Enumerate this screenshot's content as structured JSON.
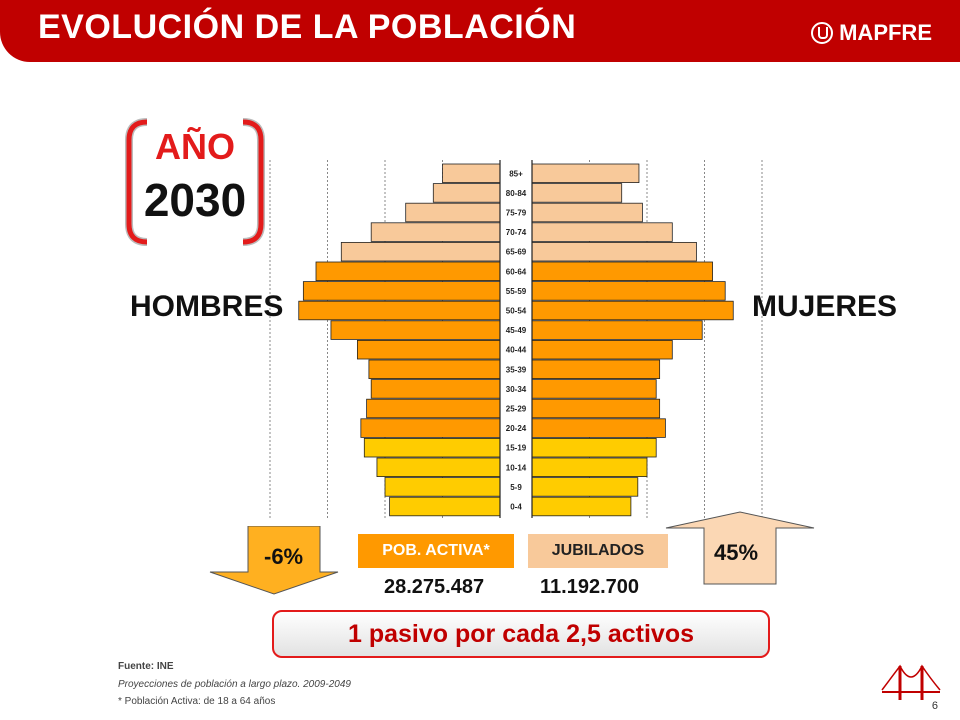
{
  "header": {
    "title": "EVOLUCIÓN DE LA POBLACIÓN",
    "logo": "MAPFRE"
  },
  "year": {
    "label": "AÑO",
    "value": "2030"
  },
  "labels": {
    "men": "HOMBRES",
    "women": "MUJERES"
  },
  "changes": {
    "active_change": "-6%",
    "retired_change": "45%"
  },
  "summary": {
    "active_label": "POB. ACTIVA*",
    "retired_label": "JUBILADOS",
    "active_value": "28.275.487",
    "retired_value": "11.192.700",
    "ratio": "1 pasivo por cada 2,5 activos"
  },
  "footer": {
    "source": "Fuente: INE",
    "projection": "Proyecciones  de población a largo plazo.  2009-2049",
    "note": "* Población Activa:  de 18 a 64 años",
    "page": "6"
  },
  "chart_data": {
    "type": "bar",
    "orientation": "horizontal-pyramid",
    "categories": [
      "85+",
      "80-84",
      "75-79",
      "70-74",
      "65-69",
      "60-64",
      "55-59",
      "50-54",
      "45-49",
      "40-44",
      "35-39",
      "30-34",
      "25-29",
      "20-24",
      "15-19",
      "10-14",
      "5-9",
      "0-4"
    ],
    "series": [
      {
        "name": "HOMBRES",
        "values": [
          0.5,
          0.58,
          0.82,
          1.12,
          1.38,
          1.6,
          1.71,
          1.75,
          1.47,
          1.24,
          1.14,
          1.12,
          1.16,
          1.21,
          1.18,
          1.07,
          1.0,
          0.96
        ]
      },
      {
        "name": "MUJERES",
        "values": [
          0.93,
          0.78,
          0.96,
          1.22,
          1.43,
          1.57,
          1.68,
          1.75,
          1.48,
          1.22,
          1.11,
          1.08,
          1.11,
          1.16,
          1.08,
          1.0,
          0.92,
          0.86
        ]
      }
    ],
    "colors": {
      "older": "#f8c99a",
      "working": "#ff9900",
      "young": "#ffcc00",
      "outline": "#222222"
    },
    "grid": true
  }
}
